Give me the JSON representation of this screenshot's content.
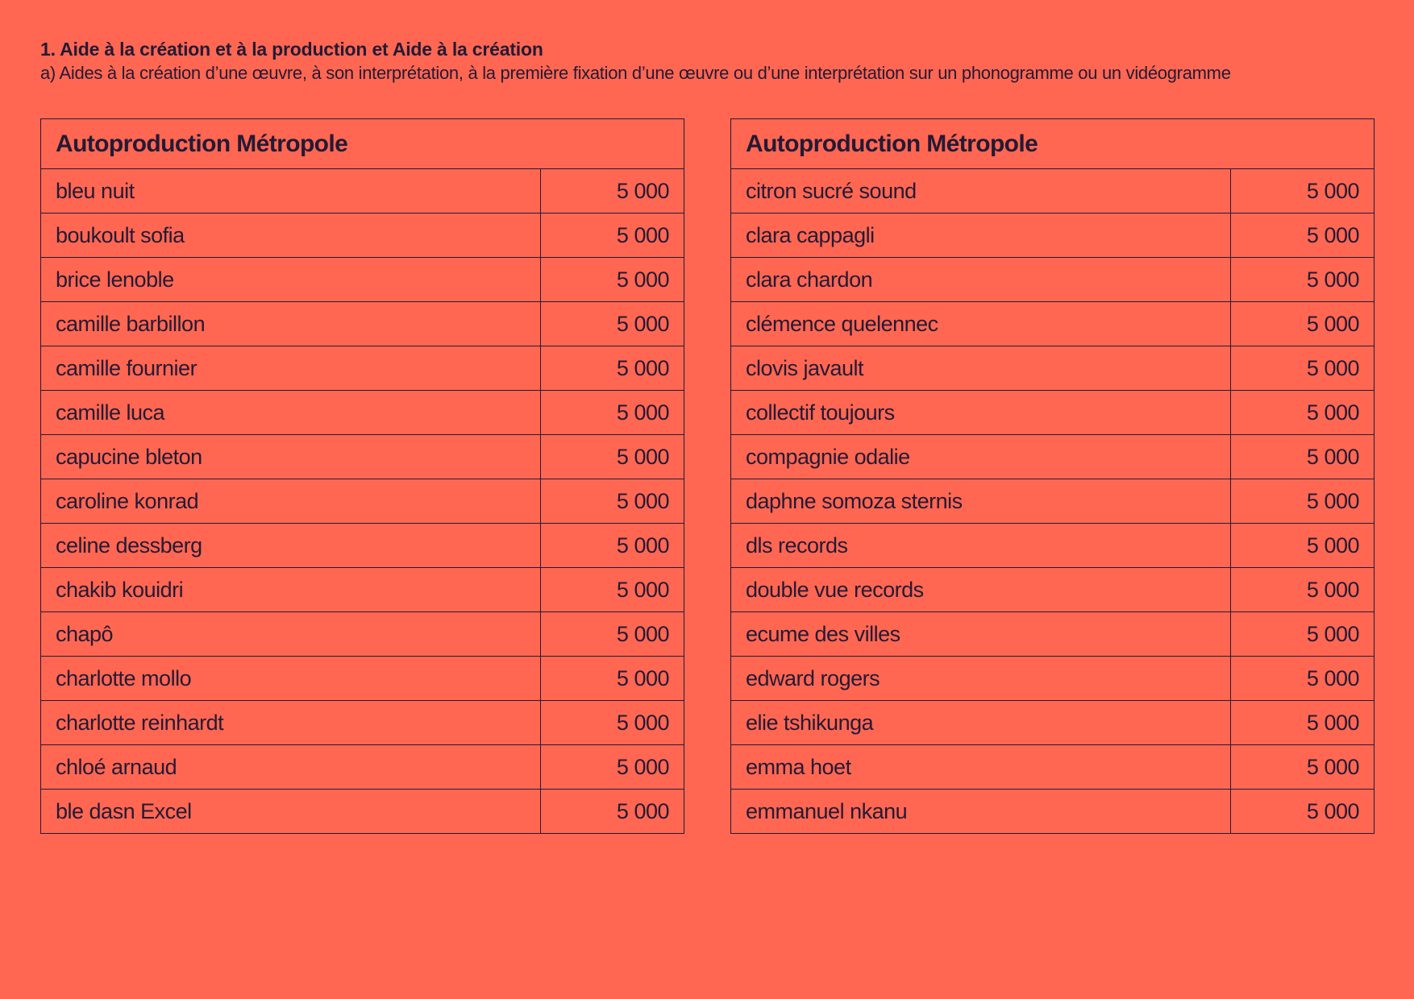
{
  "heading": {
    "title": "1. Aide à la création et à la production et Aide à la création",
    "subtitle": "a) Aides à la création d’une œuvre, à son interprétation, à la première fixation d’une œuvre ou d’une interprétation sur un phonogramme ou un vidéogramme"
  },
  "tables": [
    {
      "header": "Autoproduction Métropole",
      "rows": [
        {
          "name": "bleu nuit",
          "amount": "5 000"
        },
        {
          "name": "boukoult sofia",
          "amount": "5 000"
        },
        {
          "name": "brice lenoble",
          "amount": "5 000"
        },
        {
          "name": "camille barbillon",
          "amount": "5 000"
        },
        {
          "name": "camille fournier",
          "amount": "5 000"
        },
        {
          "name": "camille luca",
          "amount": "5 000"
        },
        {
          "name": "capucine bleton",
          "amount": "5 000"
        },
        {
          "name": "caroline konrad",
          "amount": "5 000"
        },
        {
          "name": "celine dessberg",
          "amount": "5 000"
        },
        {
          "name": "chakib kouidri",
          "amount": "5 000"
        },
        {
          "name": "chapô",
          "amount": "5 000"
        },
        {
          "name": "charlotte mollo",
          "amount": "5 000"
        },
        {
          "name": "charlotte reinhardt",
          "amount": "5 000"
        },
        {
          "name": "chloé arnaud",
          "amount": "5 000"
        },
        {
          "name": "ble dasn Excel",
          "amount": "5 000"
        }
      ]
    },
    {
      "header": "Autoproduction Métropole",
      "rows": [
        {
          "name": "citron sucré sound",
          "amount": "5 000"
        },
        {
          "name": "clara cappagli",
          "amount": "5 000"
        },
        {
          "name": "clara chardon",
          "amount": "5 000"
        },
        {
          "name": "clémence quelennec",
          "amount": "5 000"
        },
        {
          "name": "clovis javault",
          "amount": "5 000"
        },
        {
          "name": "collectif toujours",
          "amount": "5 000"
        },
        {
          "name": "compagnie odalie",
          "amount": "5 000"
        },
        {
          "name": "daphne somoza sternis",
          "amount": "5 000"
        },
        {
          "name": "dls records",
          "amount": "5 000"
        },
        {
          "name": "double vue records",
          "amount": "5 000"
        },
        {
          "name": "ecume des villes",
          "amount": "5 000"
        },
        {
          "name": "edward rogers",
          "amount": "5 000"
        },
        {
          "name": "elie tshikunga",
          "amount": "5 000"
        },
        {
          "name": "emma hoet",
          "amount": "5 000"
        },
        {
          "name": "emmanuel nkanu",
          "amount": "5 000"
        }
      ]
    }
  ]
}
